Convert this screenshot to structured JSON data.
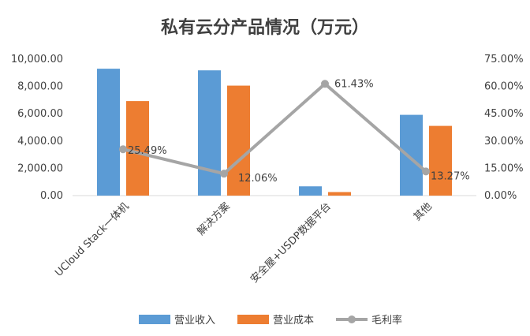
{
  "chart_data": {
    "type": "bar",
    "title": "私有云分产品情况（万元）",
    "categories": [
      "UCloud Stack一体机",
      "解决方案",
      "安全屋+USDP数据平台",
      "其他"
    ],
    "series": [
      {
        "name": "营业收入",
        "type": "bar",
        "axis": "left",
        "color": "#5B9BD5",
        "values": [
          9300,
          9180,
          680,
          5920
        ]
      },
      {
        "name": "营业成本",
        "type": "bar",
        "axis": "left",
        "color": "#ED7D31",
        "values": [
          6930,
          8060,
          260,
          5110
        ]
      },
      {
        "name": "毛利率",
        "type": "line",
        "axis": "right",
        "color": "#A5A5A5",
        "values": [
          25.49,
          12.06,
          61.43,
          13.27
        ],
        "labels": [
          "25.49%",
          "12.06%",
          "61.43%",
          "13.27%"
        ]
      }
    ],
    "y_left": {
      "min": 0,
      "max": 10000,
      "ticks": [
        "0.00",
        "2,000.00",
        "4,000.00",
        "6,000.00",
        "8,000.00",
        "10,000.00"
      ]
    },
    "y_right": {
      "min": 0,
      "max": 75,
      "ticks": [
        "0.00%",
        "15.00%",
        "30.00%",
        "45.00%",
        "60.00%",
        "75.00%"
      ]
    },
    "legend_position": "bottom",
    "grid": false
  }
}
